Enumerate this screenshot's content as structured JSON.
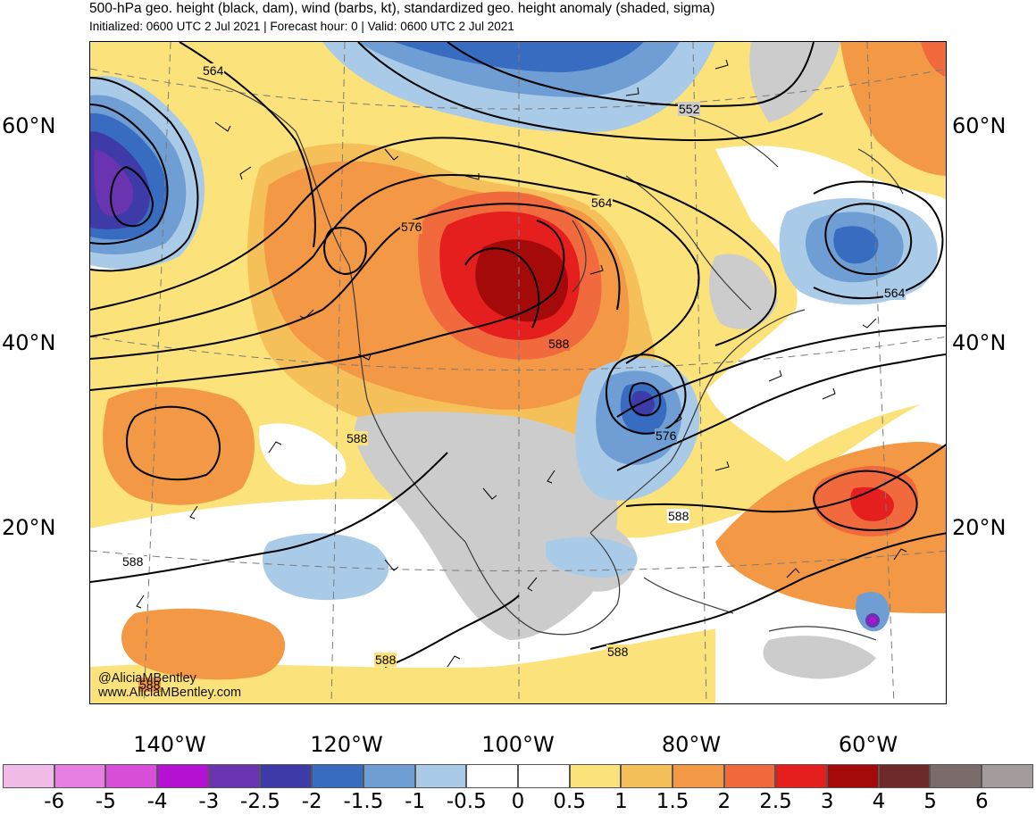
{
  "header": {
    "title": "500-hPa geo. height (black, dam), wind (barbs, kt), standardized geo. height anomaly (shaded, sigma)",
    "subtitle": "Initialized: 0600 UTC 2 Jul 2021 | Forecast hour: 0 | Valid: 0600 UTC 2 Jul 2021"
  },
  "axes": {
    "lat_labels": [
      "60°N",
      "40°N",
      "20°N"
    ],
    "lon_labels": [
      "140°W",
      "120°W",
      "100°W",
      "80°W",
      "60°W"
    ]
  },
  "contour_labels": [
    "564",
    "552",
    "576",
    "564",
    "564",
    "588",
    "576",
    "588",
    "588",
    "588",
    "588",
    "588",
    "588"
  ],
  "watermark": {
    "line1": "@AliciaMBentley",
    "line2": "www.AliciaMBentley.com"
  },
  "colorbar": {
    "colors": [
      "#f0bbe6",
      "#e77fe2",
      "#d84ed9",
      "#b511d2",
      "#6a33b0",
      "#3e3aa8",
      "#386cc0",
      "#6f9ed4",
      "#a9cbe8",
      "#ffffff",
      "#ffffff",
      "#fbe27a",
      "#f5c05a",
      "#f39845",
      "#f06a3e",
      "#e51e1e",
      "#a50a0a",
      "#6e2a2a",
      "#7b6b6b",
      "#a49b9b"
    ],
    "tick_labels": [
      "-6",
      "-5",
      "-4",
      "-3",
      "-2.5",
      "-2",
      "-1.5",
      "-1",
      "-0.5",
      "0",
      "0.5",
      "1",
      "1.5",
      "2",
      "2.5",
      "3",
      "4",
      "5",
      "6"
    ]
  },
  "map_colors": {
    "land_neutral": "#cccccc",
    "positive_strong": "#a50a0a",
    "negative_strong": "#3e3aa8"
  }
}
